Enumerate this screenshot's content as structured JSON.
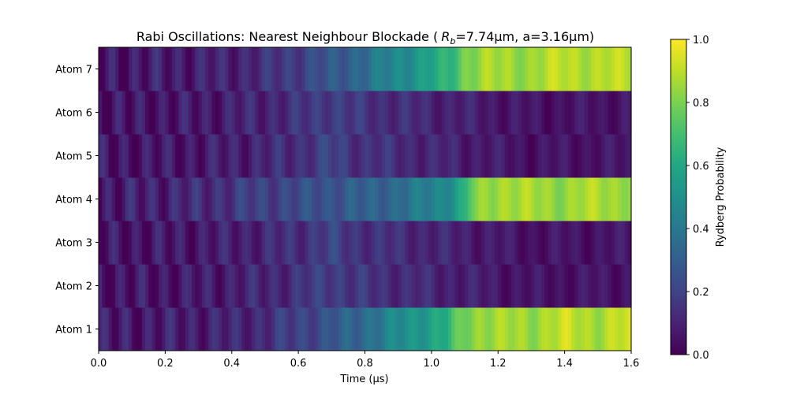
{
  "chart_data": {
    "type": "heatmap",
    "title": "Rabi Oscillations: Nearest Neighbour Blockade (",
    "title_symbol": "R",
    "title_subscript": "b",
    "title_rest": "=7.74μm, a=3.16μm)",
    "xlabel": "Time (μs)",
    "ylabel": "",
    "xlim": [
      0.0,
      1.6
    ],
    "x_ticks": [
      "0.0",
      "0.2",
      "0.4",
      "0.6",
      "0.8",
      "1.0",
      "1.2",
      "1.4",
      "1.6"
    ],
    "rows": [
      "Atom 1",
      "Atom 2",
      "Atom 3",
      "Atom 4",
      "Atom 5",
      "Atom 6",
      "Atom 7"
    ],
    "colorbar": {
      "label": "Rydberg Probability",
      "range": [
        0.0,
        1.0
      ],
      "ticks": [
        "0.0",
        "0.2",
        "0.4",
        "0.6",
        "0.8",
        "1.0"
      ],
      "colormap": "viridis"
    },
    "profiles": {
      "edge": {
        "rows": [
          "Atom 1",
          "Atom 7"
        ],
        "points": [
          [
            0.0,
            0.06
          ],
          [
            0.2,
            0.08
          ],
          [
            0.4,
            0.1
          ],
          [
            0.5,
            0.13
          ],
          [
            0.6,
            0.2
          ],
          [
            0.7,
            0.26
          ],
          [
            0.8,
            0.36
          ],
          [
            0.9,
            0.47
          ],
          [
            1.0,
            0.58
          ],
          [
            1.05,
            0.63
          ],
          [
            1.1,
            0.8
          ],
          [
            1.15,
            0.86
          ],
          [
            1.3,
            0.85
          ],
          [
            1.4,
            0.91
          ],
          [
            1.5,
            0.87
          ],
          [
            1.6,
            0.92
          ]
        ]
      },
      "center": {
        "rows": [
          "Atom 4"
        ],
        "points": [
          [
            0.0,
            0.07
          ],
          [
            0.3,
            0.12
          ],
          [
            0.5,
            0.2
          ],
          [
            0.6,
            0.22
          ],
          [
            0.7,
            0.27
          ],
          [
            0.8,
            0.3
          ],
          [
            0.9,
            0.35
          ],
          [
            1.0,
            0.44
          ],
          [
            1.05,
            0.5
          ],
          [
            1.1,
            0.6
          ],
          [
            1.12,
            0.78
          ],
          [
            1.2,
            0.88
          ],
          [
            1.3,
            0.86
          ],
          [
            1.4,
            0.84
          ],
          [
            1.5,
            0.88
          ],
          [
            1.6,
            0.85
          ]
        ]
      },
      "blockaded": {
        "rows": [
          "Atom 2",
          "Atom 3",
          "Atom 5",
          "Atom 6"
        ],
        "points": [
          [
            0.0,
            0.05
          ],
          [
            0.3,
            0.07
          ],
          [
            0.5,
            0.11
          ],
          [
            0.6,
            0.14
          ],
          [
            0.7,
            0.2
          ],
          [
            0.75,
            0.16
          ],
          [
            0.9,
            0.13
          ],
          [
            1.1,
            0.09
          ],
          [
            1.3,
            0.05
          ],
          [
            1.6,
            0.06
          ]
        ]
      }
    }
  }
}
